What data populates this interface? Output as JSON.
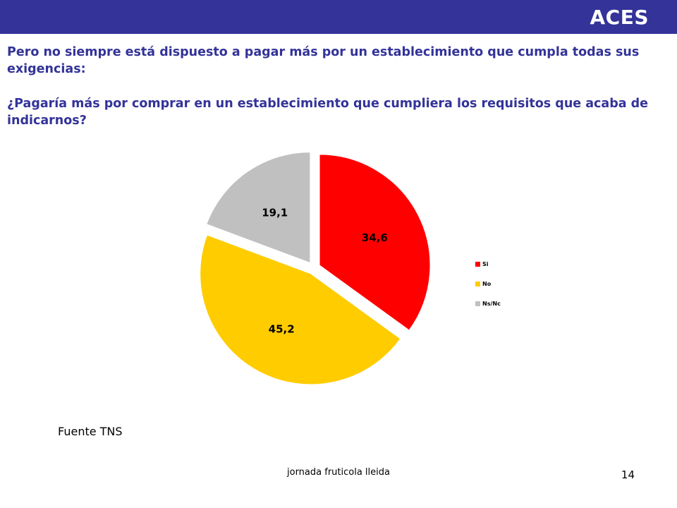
{
  "header": {
    "brand": "ACES",
    "bar_color": "#333399"
  },
  "headline": "Pero no siempre está dispuesto a pagar más por un establecimiento que cumpla todas sus exigencias:",
  "question": "¿Pagaría más por comprar en un establecimiento que cumpliera los requisitos que acaba de indicarnos?",
  "chart_data": {
    "type": "pie",
    "title": "",
    "categories": [
      "Si",
      "No",
      "Ns/Nc"
    ],
    "values": [
      34.6,
      45.2,
      19.1
    ],
    "data_labels": [
      "34,6",
      "45,2",
      "19,1"
    ],
    "colors": [
      "#ff0000",
      "#ffcc00",
      "#c0c0c0"
    ],
    "start_angle_deg": 0,
    "direction": "clockwise",
    "exploded": true,
    "legend_position": "right"
  },
  "source": "Fuente TNS",
  "footer": {
    "text": "jornada fruticola lleida",
    "page_number": "14"
  }
}
